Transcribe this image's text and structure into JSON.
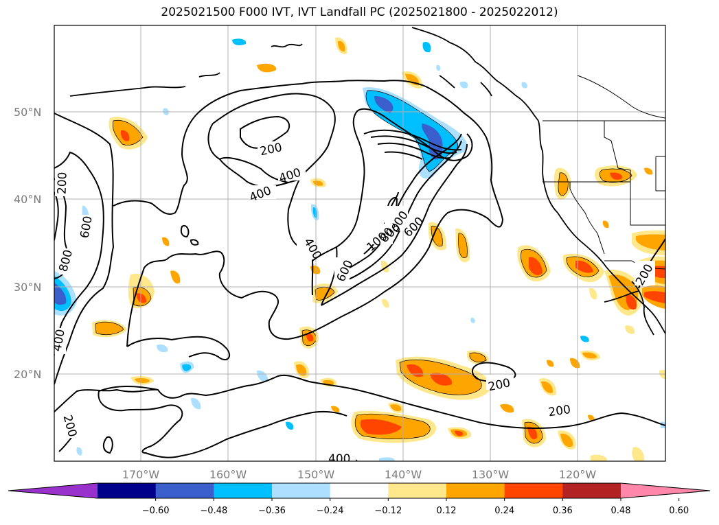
{
  "title": "2025021500 F000 IVT, IVT Landfall PC (2025021800 - 2025022012)",
  "lat_labels": [
    "50°N",
    "40°N",
    "30°N",
    "20°N"
  ],
  "lon_labels": [
    "170°W",
    "160°W",
    "150°W",
    "140°W",
    "130°W",
    "120°W"
  ],
  "contour_labels": [
    "200",
    "400",
    "400",
    "400",
    "600",
    "800",
    "1000",
    "800",
    "600",
    "200",
    "200",
    "600",
    "800",
    "400",
    "200",
    "400",
    "200",
    "200"
  ],
  "colorbar": {
    "ticks": [
      "−0.60",
      "−0.48",
      "−0.36",
      "−0.24",
      "−0.12",
      "0.12",
      "0.24",
      "0.36",
      "0.48",
      "0.60"
    ],
    "colors": [
      "#9932CC",
      "#00008B",
      "#3A5FCD",
      "#00BFFF",
      "#ADDFFF",
      "#FFFFFF",
      "#FFE88C",
      "#FFA500",
      "#FF4500",
      "#B22222",
      "#FF88AA"
    ]
  },
  "colors": {
    "positive_light": "#FFE88C",
    "positive_mid": "#FFA500",
    "positive_strong": "#FF4500",
    "negative_light": "#ADDFFF",
    "negative_mid": "#00BFFF",
    "negative_strong": "#3A5FCD"
  }
}
